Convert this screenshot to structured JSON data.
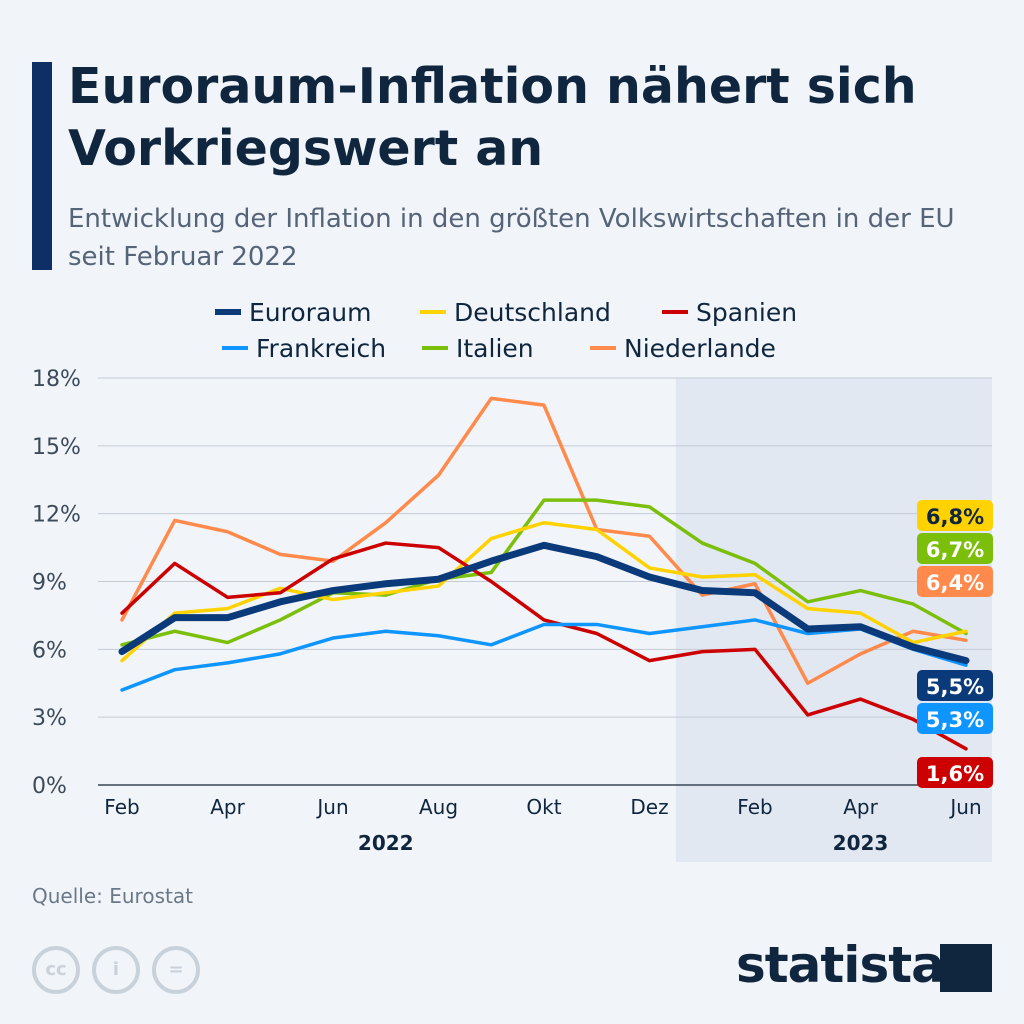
{
  "title": "Euroraum-Inflation nähert sich Vorkriegswert an",
  "subtitle": "Entwicklung der Inflation in den größten Volkswirtschaften in der EU seit Februar 2022",
  "source": "Quelle: Eurostat",
  "logo": "statista",
  "license_icons": [
    "cc-icon",
    "attribution-icon",
    "no-derivatives-icon"
  ],
  "chart_data": {
    "type": "line",
    "title": "",
    "xlabel": "",
    "ylabel": "",
    "ylim": [
      0,
      18
    ],
    "yticks": [
      "0%",
      "3%",
      "6%",
      "9%",
      "12%",
      "15%",
      "18%"
    ],
    "x": [
      "Feb 2022",
      "Mär 2022",
      "Apr 2022",
      "Mai 2022",
      "Jun 2022",
      "Jul 2022",
      "Aug 2022",
      "Sep 2022",
      "Okt 2022",
      "Nov 2022",
      "Dez 2022",
      "Jan 2023",
      "Feb 2023",
      "Mär 2023",
      "Apr 2023",
      "Mai 2023",
      "Jun 2023"
    ],
    "xtick_labels": [
      "Feb",
      "",
      "Apr",
      "",
      "Jun",
      "",
      "Aug",
      "",
      "Okt",
      "",
      "Dez",
      "",
      "Feb",
      "",
      "Apr",
      "",
      "Jun"
    ],
    "year_labels": [
      "2022",
      "2023"
    ],
    "shaded_region": "2023",
    "grid": true,
    "legend_placement": "top",
    "series": [
      {
        "name": "Euroraum",
        "color": "#0b3a7a",
        "values": [
          5.9,
          7.4,
          7.4,
          8.1,
          8.6,
          8.9,
          9.1,
          9.9,
          10.6,
          10.1,
          9.2,
          8.6,
          8.5,
          6.9,
          7.0,
          6.1,
          5.5
        ],
        "end_label": "5,5%",
        "label_text_color": "#ffffff"
      },
      {
        "name": "Deutschland",
        "color": "#ffd200",
        "values": [
          5.5,
          7.6,
          7.8,
          8.7,
          8.2,
          8.5,
          8.8,
          10.9,
          11.6,
          11.3,
          9.6,
          9.2,
          9.3,
          7.8,
          7.6,
          6.3,
          6.8
        ],
        "end_label": "6,8%",
        "label_text_color": "#10263f"
      },
      {
        "name": "Spanien",
        "color": "#cc0000",
        "values": [
          7.6,
          9.8,
          8.3,
          8.5,
          10.0,
          10.7,
          10.5,
          9.0,
          7.3,
          6.7,
          5.5,
          5.9,
          6.0,
          3.1,
          3.8,
          2.9,
          1.6
        ],
        "end_label": "1,6%",
        "label_text_color": "#ffffff"
      },
      {
        "name": "Frankreich",
        "color": "#0f95ff",
        "values": [
          4.2,
          5.1,
          5.4,
          5.8,
          6.5,
          6.8,
          6.6,
          6.2,
          7.1,
          7.1,
          6.7,
          7.0,
          7.3,
          6.7,
          6.9,
          6.0,
          5.3
        ],
        "end_label": "5,3%",
        "label_text_color": "#ffffff"
      },
      {
        "name": "Italien",
        "color": "#7bbf0a",
        "values": [
          6.2,
          6.8,
          6.3,
          7.3,
          8.5,
          8.4,
          9.1,
          9.4,
          12.6,
          12.6,
          12.3,
          10.7,
          9.8,
          8.1,
          8.6,
          8.0,
          6.7
        ],
        "end_label": "6,7%",
        "label_text_color": "#ffffff"
      },
      {
        "name": "Niederlande",
        "color": "#ff8a4c",
        "values": [
          7.3,
          11.7,
          11.2,
          10.2,
          9.9,
          11.6,
          13.7,
          17.1,
          16.8,
          11.3,
          11.0,
          8.4,
          8.9,
          4.5,
          5.8,
          6.8,
          6.4
        ],
        "end_label": "6,4%",
        "label_text_color": "#ffffff"
      }
    ]
  }
}
